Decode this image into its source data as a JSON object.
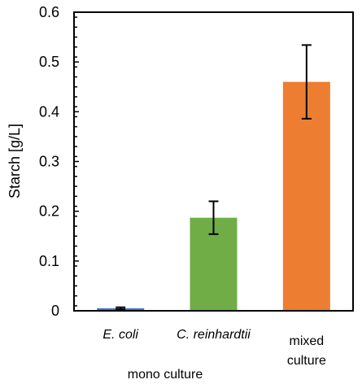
{
  "chart_data": {
    "type": "bar",
    "ylabel": "Starch [g/L]",
    "ylim": [
      0,
      0.6
    ],
    "yticks": [
      "0",
      "0.1",
      "0.2",
      "0.3",
      "0.4",
      "0.5",
      "0.6"
    ],
    "categories": [
      {
        "lines": [
          "E. coli"
        ],
        "italic": true
      },
      {
        "lines": [
          "C. reinhardtii"
        ],
        "italic": true
      },
      {
        "lines": [
          "mixed",
          "culture"
        ],
        "italic": false
      }
    ],
    "values": [
      0.005,
      0.187,
      0.46
    ],
    "errors": [
      0.002,
      0.033,
      0.074
    ],
    "colors": [
      "#4472c4",
      "#70ad47",
      "#ed7d31"
    ],
    "group_label": "mono culture"
  }
}
